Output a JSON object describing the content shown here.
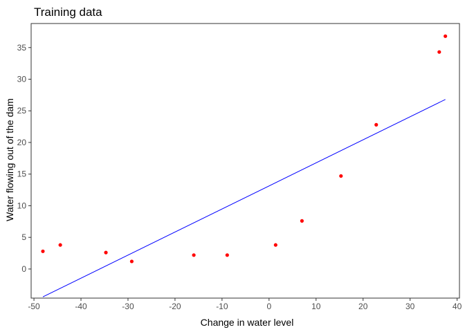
{
  "chart_data": {
    "type": "scatter",
    "title": "Training data",
    "xlabel": "Change in water level",
    "ylabel": "Water flowing out of the dam",
    "xlim": [
      -50.6,
      40.5
    ],
    "ylim": [
      -4.6,
      38.8
    ],
    "xticks": [
      -50,
      -40,
      -30,
      -20,
      -10,
      0,
      10,
      20,
      30,
      40
    ],
    "yticks": [
      0,
      5,
      10,
      15,
      20,
      25,
      30,
      35
    ],
    "grid": false,
    "points": {
      "color": "#ff0000",
      "x": [
        -48.1,
        -44.4,
        -34.7,
        -29.2,
        -16.0,
        -8.9,
        1.4,
        7.0,
        15.3,
        22.8,
        36.2,
        37.5
      ],
      "y": [
        2.8,
        3.8,
        2.6,
        1.2,
        2.2,
        2.2,
        3.8,
        7.6,
        14.7,
        22.8,
        34.3,
        36.8
      ]
    },
    "fit_line": {
      "color": "#0000ff",
      "x": [
        -48.1,
        37.5
      ],
      "y": [
        -4.4,
        26.8
      ]
    }
  }
}
